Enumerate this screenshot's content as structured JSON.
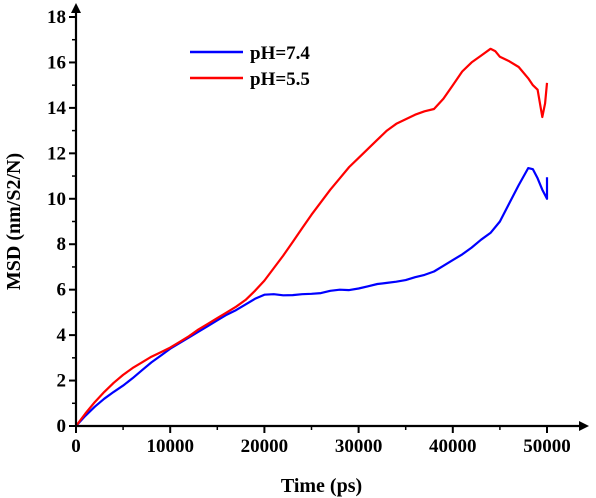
{
  "chart_data": {
    "type": "line",
    "xlabel": "Time (ps)",
    "ylabel": "MSD (nm/S2/N)",
    "xlim": [
      0,
      50000
    ],
    "ylim": [
      0,
      18
    ],
    "x_ticks": [
      0,
      10000,
      20000,
      30000,
      40000,
      50000
    ],
    "y_ticks": [
      0,
      2,
      4,
      6,
      8,
      10,
      12,
      14,
      16,
      18
    ],
    "legend_position": "top-left",
    "grid": false,
    "series": [
      {
        "name": "pH=7.4",
        "color": "#0000ff",
        "x": [
          0,
          1000,
          2000,
          3000,
          4000,
          5000,
          6000,
          7000,
          8000,
          9000,
          10000,
          11000,
          12000,
          13000,
          14000,
          15000,
          16000,
          17000,
          18000,
          19000,
          20000,
          21000,
          22000,
          23000,
          24000,
          25000,
          26000,
          27000,
          28000,
          29000,
          30000,
          31000,
          32000,
          33000,
          34000,
          35000,
          36000,
          37000,
          38000,
          39000,
          40000,
          41000,
          42000,
          43000,
          44000,
          45000,
          46000,
          47000,
          48000,
          48500,
          49000,
          49500,
          50000,
          50000
        ],
        "y": [
          0,
          0.45,
          0.85,
          1.2,
          1.5,
          1.78,
          2.1,
          2.45,
          2.8,
          3.1,
          3.4,
          3.65,
          3.9,
          4.15,
          4.4,
          4.65,
          4.9,
          5.1,
          5.35,
          5.6,
          5.78,
          5.8,
          5.75,
          5.76,
          5.8,
          5.82,
          5.85,
          5.95,
          6.0,
          5.98,
          6.05,
          6.15,
          6.25,
          6.3,
          6.35,
          6.42,
          6.55,
          6.65,
          6.8,
          7.05,
          7.3,
          7.55,
          7.85,
          8.2,
          8.5,
          9.0,
          9.8,
          10.6,
          11.35,
          11.3,
          10.9,
          10.4,
          10.0,
          10.95
        ]
      },
      {
        "name": "pH=5.5",
        "color": "#ff0000",
        "x": [
          0,
          1000,
          2000,
          3000,
          4000,
          5000,
          6000,
          7000,
          8000,
          9000,
          10000,
          11000,
          12000,
          13000,
          14000,
          15000,
          16000,
          17000,
          18000,
          19000,
          20000,
          21000,
          22000,
          23000,
          24000,
          25000,
          26000,
          27000,
          28000,
          29000,
          30000,
          31000,
          32000,
          33000,
          34000,
          35000,
          36000,
          37000,
          38000,
          39000,
          40000,
          41000,
          42000,
          43000,
          44000,
          44500,
          45000,
          46000,
          47000,
          48000,
          48500,
          49000,
          49500,
          49800,
          50000
        ],
        "y": [
          0,
          0.55,
          1.05,
          1.5,
          1.9,
          2.25,
          2.55,
          2.8,
          3.05,
          3.25,
          3.45,
          3.7,
          3.95,
          4.25,
          4.5,
          4.75,
          5.0,
          5.25,
          5.55,
          5.95,
          6.4,
          6.95,
          7.5,
          8.1,
          8.7,
          9.3,
          9.85,
          10.4,
          10.9,
          11.4,
          11.8,
          12.2,
          12.6,
          13.0,
          13.3,
          13.5,
          13.7,
          13.85,
          13.95,
          14.4,
          15.0,
          15.6,
          16.0,
          16.3,
          16.6,
          16.5,
          16.25,
          16.05,
          15.8,
          15.3,
          15.0,
          14.8,
          13.6,
          14.2,
          15.1
        ]
      }
    ]
  }
}
